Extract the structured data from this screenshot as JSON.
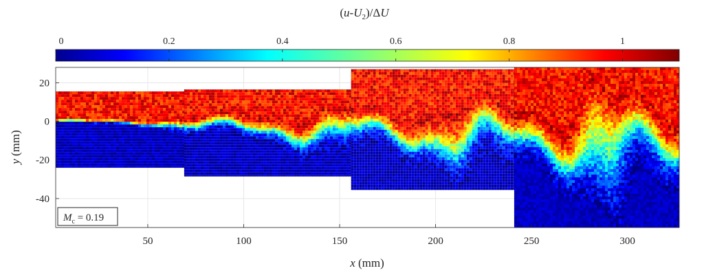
{
  "chart_data": {
    "type": "heatmap",
    "colorbar": {
      "title": "(u-U₂)/ΔU",
      "title_parts": {
        "open": "(",
        "u": "u",
        "dash": "-",
        "U": "U",
        "sub": "2",
        "close": ")/",
        "delta": "Δ",
        "U2": "U"
      },
      "range": [
        0,
        1.1
      ],
      "ticks": [
        0,
        0.2,
        0.4,
        0.6,
        0.8,
        1
      ],
      "tick_labels": [
        "0",
        "0.2",
        "0.4",
        "0.6",
        "0.8",
        "1"
      ],
      "colormap": "jet",
      "placement": "top"
    },
    "xlabel": "x (mm)",
    "xlabel_parts": {
      "var": "x",
      "unit": " (mm)"
    },
    "ylabel": "y (mm)",
    "ylabel_parts": {
      "var": "y",
      "unit": " (mm)"
    },
    "xlim": [
      2,
      327
    ],
    "ylim": [
      -55,
      28
    ],
    "xticks": [
      50,
      100,
      150,
      200,
      250,
      300
    ],
    "xtick_labels": [
      "50",
      "100",
      "150",
      "200",
      "250",
      "300"
    ],
    "yticks": [
      -40,
      -20,
      0,
      20
    ],
    "ytick_labels": [
      "-40",
      "-20",
      "0",
      "20"
    ],
    "grid": true,
    "annotation": {
      "var": "M",
      "sub": "c",
      "rest": " = 0.19",
      "text": "Mc = 0.19",
      "placement": "bottom-left"
    },
    "windows": [
      {
        "x": [
          2,
          69
        ],
        "y": [
          -24,
          15.5
        ]
      },
      {
        "x": [
          69,
          156
        ],
        "y": [
          -28.5,
          16.5
        ]
      },
      {
        "x": [
          156,
          241
        ],
        "y": [
          -35.5,
          27
        ]
      },
      {
        "x": [
          241,
          327
        ],
        "y": [
          -55,
          28
        ]
      }
    ],
    "mixing_layer": {
      "x": [
        2,
        50,
        69,
        100,
        150,
        156,
        200,
        241,
        280,
        327
      ],
      "center_y": [
        0,
        -0.5,
        -2,
        -3,
        -6,
        -4,
        -8,
        -8,
        -12,
        -14
      ],
      "half_thickness": [
        0.8,
        1.5,
        3,
        5,
        8,
        8,
        11,
        13,
        18,
        20
      ]
    }
  }
}
